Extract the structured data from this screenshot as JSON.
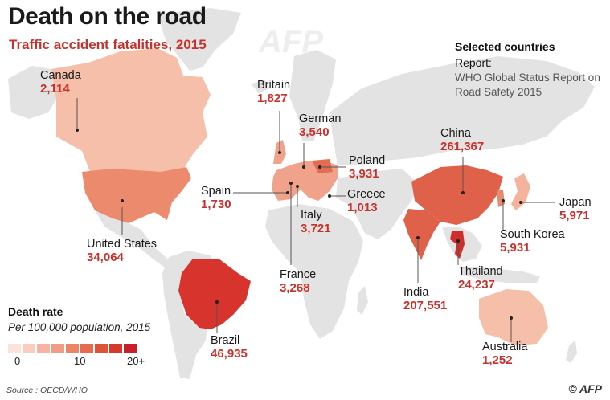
{
  "title": "Death on the road",
  "subtitle": "Traffic accident fatalities, 2015",
  "selected_heading": "Selected countries",
  "report_label": "Report:",
  "report_source": "WHO Global Status Report on Road Safety 2015",
  "countries": [
    {
      "name": "Canada",
      "value": "2,114"
    },
    {
      "name": "United States",
      "value": "34,064"
    },
    {
      "name": "Brazil",
      "value": "46,935"
    },
    {
      "name": "Britain",
      "value": "1,827"
    },
    {
      "name": "German",
      "value": "3,540"
    },
    {
      "name": "Poland",
      "value": "3,931"
    },
    {
      "name": "Spain",
      "value": "1,730"
    },
    {
      "name": "Greece",
      "value": "1,013"
    },
    {
      "name": "Italy",
      "value": "3,721"
    },
    {
      "name": "France",
      "value": "3,268"
    },
    {
      "name": "China",
      "value": "261,367"
    },
    {
      "name": "Japan",
      "value": "5,971"
    },
    {
      "name": "South Korea",
      "value": "5,931"
    },
    {
      "name": "India",
      "value": "207,551"
    },
    {
      "name": "Thailand",
      "value": "24,237"
    },
    {
      "name": "Australia",
      "value": "1,252"
    }
  ],
  "legend": {
    "title": "Death rate",
    "subtitle": "Per 100,000 population, 2015",
    "ticks": [
      "0",
      "10",
      "20+"
    ],
    "colors": [
      "#fbe3dc",
      "#f9cdbf",
      "#f5b5a2",
      "#f19c85",
      "#ec8468",
      "#e66b50",
      "#de5239",
      "#d43a2c",
      "#c8202a"
    ]
  },
  "colors": {
    "land": "#e3e3e3",
    "canada": "#f5bfa9",
    "usa": "#ec8a6e",
    "brazil": "#d7342d",
    "china": "#e0614a",
    "india": "#e0614a",
    "thailand": "#cf2f2a",
    "australia": "#f5bfa9",
    "europe": "#f0a28a",
    "accent": "#c8322d"
  },
  "source": "Source : OECD/WHO",
  "credit": "© AFP",
  "watermark": "AFP"
}
